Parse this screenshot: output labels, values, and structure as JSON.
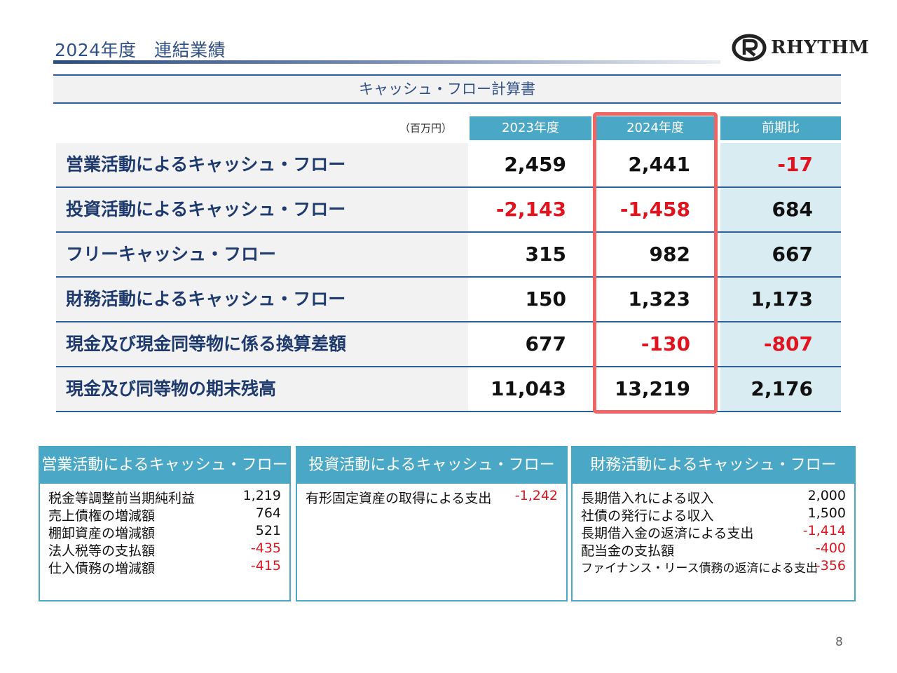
{
  "header": {
    "title": "2024年度　連結業績",
    "logo_text": "RHYTHM"
  },
  "banner": "キャッシュ・フロー計算書",
  "table": {
    "unit": "（百万円）",
    "columns": [
      "2023年度",
      "2024年度",
      "前期比"
    ],
    "rows": [
      {
        "label": "営業活動によるキャッシュ・フロー",
        "v2023": "2,459",
        "v2024": "2,441",
        "diff": "-17"
      },
      {
        "label": "投資活動によるキャッシュ・フロー",
        "v2023": "-2,143",
        "v2024": "-1,458",
        "diff": "684"
      },
      {
        "label": "フリーキャッシュ・フロー",
        "v2023": "315",
        "v2024": "982",
        "diff": "667"
      },
      {
        "label": "財務活動によるキャッシュ・フロー",
        "v2023": "150",
        "v2024": "1,323",
        "diff": "1,173"
      },
      {
        "label": "現金及び現金同等物に係る換算差額",
        "v2023": "677",
        "v2024": "-130",
        "diff": "-807"
      },
      {
        "label": "現金及び同等物の期末残高",
        "v2023": "11,043",
        "v2024": "13,219",
        "diff": "2,176"
      }
    ]
  },
  "boxes": [
    {
      "title": "営業活動によるキャッシュ・フロー",
      "items": [
        {
          "k": "税金等調整前当期純利益",
          "v": "1,219"
        },
        {
          "k": "売上債権の増減額",
          "v": "764"
        },
        {
          "k": "棚卸資産の増減額",
          "v": "521"
        },
        {
          "k": "法人税等の支払額",
          "v": "-435"
        },
        {
          "k": "仕入債務の増減額",
          "v": "-415"
        }
      ]
    },
    {
      "title": "投資活動によるキャッシュ・フロー",
      "items": [
        {
          "k": "有形固定資産の取得による支出",
          "v": "-1,242"
        }
      ]
    },
    {
      "title": "財務活動によるキャッシュ・フロー",
      "items": [
        {
          "k": "長期借入れによる収入",
          "v": "2,000"
        },
        {
          "k": "社債の発行による収入",
          "v": "1,500"
        },
        {
          "k": "長期借入金の返済による支出",
          "v": "-1,414"
        },
        {
          "k": "配当金の支払額",
          "v": "-400"
        },
        {
          "k": "ファイナンス・リース債務の返済による支出",
          "v": "-356"
        }
      ]
    }
  ],
  "page_number": "8",
  "colors": {
    "title": "#2f4f86",
    "header_fill": "#4aa8c6",
    "negative": "#e0141e",
    "highlight": "#f06464",
    "diff_fill": "#d9ecf2"
  }
}
